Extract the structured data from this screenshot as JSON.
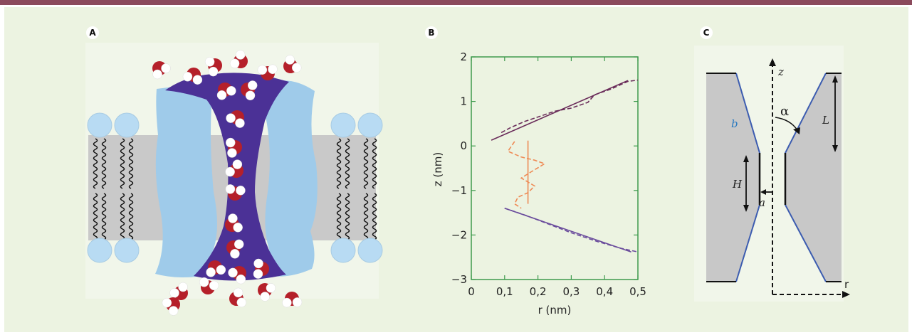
{
  "panels": {
    "a": {
      "label": "A"
    },
    "b": {
      "label": "B"
    },
    "c": {
      "label": "C"
    }
  },
  "colors": {
    "banner": "#8b4a5c",
    "background": "#ecf3e1",
    "protein": "#9fcbea",
    "channel": "#4b3196",
    "lipid_head": "#b8dbf3",
    "membrane_core": "#c9c9c9",
    "oxygen": "#b5202a",
    "hydrogen": "#ffffff",
    "fit_line": "#6a2c5a",
    "lower_line": "#6a4c9c",
    "orange": "#ee8a55",
    "cone_edge": "#3c5cb0",
    "cone_fill": "#c8c8c8"
  },
  "chart_data": {
    "type": "line",
    "xlabel": "r (nm)",
    "ylabel": "z (nm)",
    "xlim": [
      0,
      0.5
    ],
    "ylim": [
      -3,
      2
    ],
    "xticks": [
      "0",
      "0,1",
      "0,2",
      "0,3",
      "0,4",
      "0,5"
    ],
    "xtick_values": [
      0,
      0.1,
      0.2,
      0.3,
      0.4,
      0.5
    ],
    "yticks": [
      "2",
      "1",
      "0",
      "−1",
      "−2",
      "−3"
    ],
    "ytick_values": [
      2,
      1,
      0,
      -1,
      -2,
      -3
    ],
    "grid": false,
    "series": [
      {
        "style": "solid",
        "color": "#6a2c5a",
        "x": [
          0.06,
          0.47
        ],
        "y": [
          0.13,
          1.47
        ]
      },
      {
        "style": "dashed",
        "color": "#6a2c5a",
        "x": [
          0.09,
          0.12,
          0.16,
          0.2,
          0.25,
          0.3,
          0.35,
          0.37,
          0.42,
          0.47,
          0.5
        ],
        "y": [
          0.3,
          0.42,
          0.55,
          0.65,
          0.78,
          0.85,
          0.98,
          1.15,
          1.28,
          1.45,
          1.48
        ]
      },
      {
        "style": "solid",
        "color": "#ee8a55",
        "x": [
          0.17,
          0.17
        ],
        "y": [
          0.12,
          -1.3
        ]
      },
      {
        "style": "dashed",
        "color": "#ee8a55",
        "x": [
          0.13,
          0.11,
          0.15,
          0.19,
          0.22,
          0.18,
          0.15,
          0.19,
          0.17,
          0.14,
          0.13,
          0.15
        ],
        "y": [
          0.1,
          -0.12,
          -0.25,
          -0.32,
          -0.4,
          -0.58,
          -0.72,
          -0.9,
          -1.05,
          -1.15,
          -1.3,
          -1.4
        ]
      },
      {
        "style": "solid",
        "color": "#6a4c9c",
        "x": [
          0.1,
          0.48
        ],
        "y": [
          -1.4,
          -2.38
        ]
      },
      {
        "style": "dashed",
        "color": "#6a4c9c",
        "x": [
          0.1,
          0.16,
          0.22,
          0.3,
          0.38,
          0.45,
          0.5
        ],
        "y": [
          -1.4,
          -1.55,
          -1.72,
          -1.95,
          -2.15,
          -2.3,
          -2.38
        ]
      }
    ]
  },
  "diagram_c": {
    "z_label": "z",
    "r_label": "r",
    "alpha_label": "α",
    "b_label": "b",
    "L_label": "L",
    "H_label": "H",
    "a_label": "a"
  }
}
